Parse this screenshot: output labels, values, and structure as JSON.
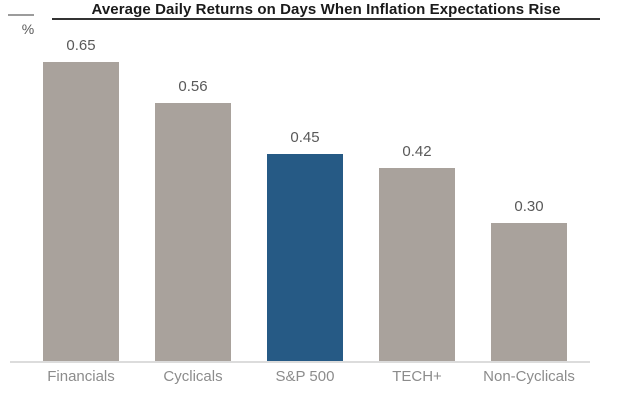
{
  "chart_data": {
    "type": "bar",
    "title": "Average Daily Returns on Days When Inflation Expectations Rise",
    "ylabel": "%",
    "xlabel": "",
    "categories": [
      "Financials",
      "Cyclicals",
      "S&P 500",
      "TECH+",
      "Non-Cyclicals"
    ],
    "values": [
      0.65,
      0.56,
      0.45,
      0.42,
      0.3
    ],
    "value_labels": [
      "0.65",
      "0.56",
      "0.45",
      "0.42",
      "0.30"
    ],
    "bar_colors": [
      "#a9a29c",
      "#a9a29c",
      "#265a85",
      "#a9a29c",
      "#a9a29c"
    ],
    "highlight_category": "S&P 500",
    "default_bar_color": "#a9a29c",
    "highlight_bar_color": "#265a85",
    "value_label_color": "#595959",
    "category_label_color": "#8c8c8c",
    "axis_line_color": "#dcdcdc",
    "ylim": [
      0,
      0.7
    ],
    "grid": false,
    "legend": "none"
  }
}
